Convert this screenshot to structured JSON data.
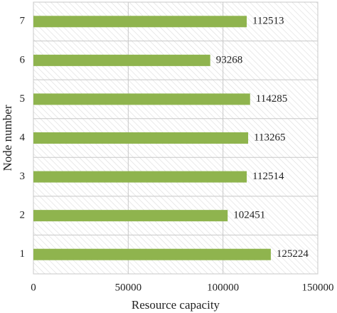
{
  "chart_data": {
    "type": "bar",
    "orientation": "horizontal",
    "x_label": "Resource capacity",
    "y_label": "Node number",
    "categories": [
      "1",
      "2",
      "3",
      "4",
      "5",
      "6",
      "7"
    ],
    "values": [
      125224,
      102451,
      112514,
      113265,
      114285,
      93268,
      112513
    ],
    "color": "#8fb44e",
    "xlim": [
      0,
      150000
    ],
    "xticks": [
      0,
      50000,
      100000,
      150000
    ],
    "grid": true,
    "data_labels": true
  }
}
